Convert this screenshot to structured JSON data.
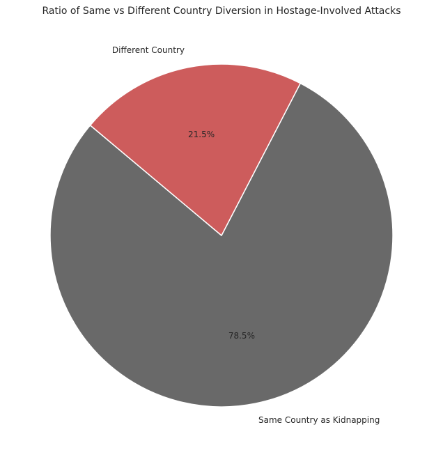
{
  "chart_data": {
    "type": "pie",
    "title": "Ratio of Same vs Different Country Diversion in Hostage-Involved Attacks",
    "slices": [
      {
        "label": "Same Country as Kidnapping",
        "value": 78.5,
        "pct_label": "78.5%",
        "color": "#696969"
      },
      {
        "label": "Different Country",
        "value": 21.5,
        "pct_label": "21.5%",
        "color": "#cd5c5c"
      }
    ],
    "start_angle_deg": 140,
    "counterclockwise": true,
    "edge_color": "#ffffff"
  }
}
